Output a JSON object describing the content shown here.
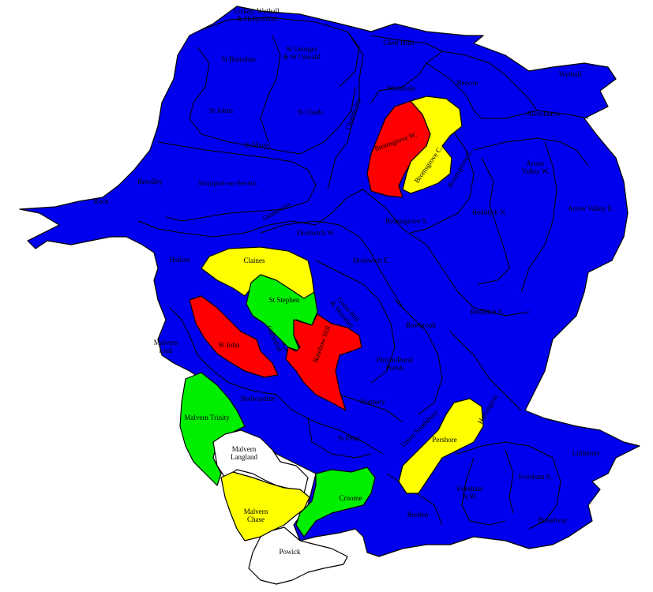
{
  "colors": {
    "blue": "#0000ee",
    "red": "#ff0000",
    "yellow": "#ffff00",
    "green": "#00ee00",
    "white": "#ffffff"
  },
  "wards": [
    {
      "id": "lickey",
      "name": "Lickey, Wythall\n& Hollywood",
      "color": "blue"
    },
    {
      "id": "st-barnabas",
      "name": "St Barnabas",
      "color": "blue"
    },
    {
      "id": "st-georges",
      "name": "St Georges\n& St Oswald",
      "color": "blue"
    },
    {
      "id": "clent-hills",
      "name": "Clent Hills",
      "color": "blue"
    },
    {
      "id": "wythall",
      "name": "Wythall",
      "color": "blue"
    },
    {
      "id": "st-johns-k",
      "name": "St Johns",
      "color": "blue"
    },
    {
      "id": "st-chads",
      "name": "St Chads",
      "color": "blue"
    },
    {
      "id": "woodvale",
      "name": "Woodvale",
      "color": "blue"
    },
    {
      "id": "beacon",
      "name": "Beacon",
      "color": "blue"
    },
    {
      "id": "alvechurch",
      "name": "Alvechurch",
      "color": "blue"
    },
    {
      "id": "st-marys",
      "name": "St Marys",
      "color": "blue"
    },
    {
      "id": "chaddesley",
      "name": "Chaddesley",
      "color": "blue"
    },
    {
      "id": "bromsgrove-w",
      "name": "Bromsgrove W.",
      "color": "red"
    },
    {
      "id": "bromsgrove-c",
      "name": "Bromsgrove C.",
      "color": "yellow"
    },
    {
      "id": "bromsgrove-e",
      "name": "Bromsgrove E.",
      "color": "blue"
    },
    {
      "id": "arrow-valley-w",
      "name": "Arrow\nValley W.",
      "color": "blue"
    },
    {
      "id": "arrow-valley-e",
      "name": "Arrow Valley E.",
      "color": "blue"
    },
    {
      "id": "stourport",
      "name": "Stourport-on-Severn",
      "color": "blue"
    },
    {
      "id": "bewdley",
      "name": "Bewdley",
      "color": "blue"
    },
    {
      "id": "rock",
      "name": "Rock",
      "color": "blue"
    },
    {
      "id": "ombersley",
      "name": "Ombersley",
      "color": "blue"
    },
    {
      "id": "droitwich-w",
      "name": "Droitwich W.",
      "color": "blue"
    },
    {
      "id": "bromsgrove-s",
      "name": "Bromsgrove S.",
      "color": "blue"
    },
    {
      "id": "redditch-n",
      "name": "Redditch N.",
      "color": "blue"
    },
    {
      "id": "droitwich-e",
      "name": "Droitwich E.",
      "color": "blue"
    },
    {
      "id": "hallow",
      "name": "Hallow",
      "color": "blue"
    },
    {
      "id": "claines",
      "name": "Claines",
      "color": "yellow"
    },
    {
      "id": "st-stephen",
      "name": "St Stephen",
      "color": "green"
    },
    {
      "id": "gorse-hill",
      "name": "Gorse Hill\n& Warndon",
      "color": "blue"
    },
    {
      "id": "bowbrook",
      "name": "Bowbrook",
      "color": "blue"
    },
    {
      "id": "redditch-s",
      "name": "Redditch S.",
      "color": "blue"
    },
    {
      "id": "malvern-link",
      "name": "Malvern\nLink",
      "color": "blue"
    },
    {
      "id": "st-john",
      "name": "St John",
      "color": "red"
    },
    {
      "id": "cathedral",
      "name": "Cathedral",
      "color": "blue"
    },
    {
      "id": "rainbow-hill",
      "name": "Rainbow Hill",
      "color": "red"
    },
    {
      "id": "pinvin",
      "name": "Pinvin/Rural\nParish",
      "color": "blue"
    },
    {
      "id": "harvington",
      "name": "Harvington",
      "color": "blue"
    },
    {
      "id": "bedwardine",
      "name": "Bedwardine",
      "color": "blue"
    },
    {
      "id": "nunnery",
      "name": "Nunnery",
      "color": "blue"
    },
    {
      "id": "malvern-trinity",
      "name": "Malvern Trinity",
      "color": "green"
    },
    {
      "id": "upton",
      "name": "Upton Snodsbury",
      "color": "blue"
    },
    {
      "id": "st-peter",
      "name": "St Peter",
      "color": "blue"
    },
    {
      "id": "pershore",
      "name": "Pershore",
      "color": "yellow"
    },
    {
      "id": "littletons",
      "name": "Littletons",
      "color": "blue"
    },
    {
      "id": "malvern-langland",
      "name": "Malvern\nLangland",
      "color": "white"
    },
    {
      "id": "evesham-s",
      "name": "Evesham S.",
      "color": "blue"
    },
    {
      "id": "evesham-n",
      "name": "Evesham\nN.W.",
      "color": "blue"
    },
    {
      "id": "croome",
      "name": "Croome",
      "color": "green"
    },
    {
      "id": "malvern-chase",
      "name": "Malvern\nChase",
      "color": "yellow"
    },
    {
      "id": "bredon",
      "name": "Bredon",
      "color": "blue"
    },
    {
      "id": "broadway",
      "name": "Broadway",
      "color": "blue"
    },
    {
      "id": "powick",
      "name": "Powick",
      "color": "white"
    }
  ]
}
